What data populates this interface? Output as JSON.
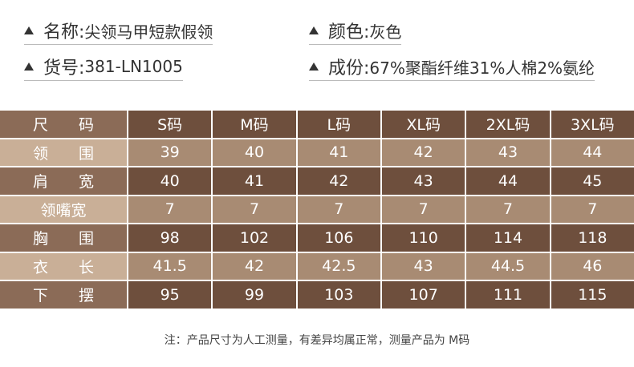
{
  "info": [
    {
      "label": "名称:",
      "value": "尖领马甲短款假领"
    },
    {
      "label": "颜色:",
      "value": "灰色"
    },
    {
      "label": "货号:",
      "value": "381-LN1005"
    },
    {
      "label": "成份:",
      "value": "67%聚酯纤维31%人棉2%氨纶"
    }
  ],
  "table": {
    "header": [
      "尺码",
      "S码",
      "M码",
      "L码",
      "XL码",
      "2XL码",
      "3XL码"
    ],
    "rows": [
      [
        "领围",
        39,
        40,
        41,
        42,
        43,
        44
      ],
      [
        "肩宽",
        40,
        41,
        42,
        43,
        44,
        45
      ],
      [
        "领嘴宽",
        7,
        7,
        7,
        7,
        7,
        7
      ],
      [
        "胸围",
        98,
        102,
        106,
        110,
        114,
        118
      ],
      [
        "衣长",
        41.5,
        42,
        42.5,
        43,
        44.5,
        46
      ],
      [
        "下摆",
        95,
        99,
        103,
        107,
        111,
        115
      ]
    ]
  },
  "note": "注：产品尺寸为人工测量，有差异均属正常，测量产品为 M码"
}
